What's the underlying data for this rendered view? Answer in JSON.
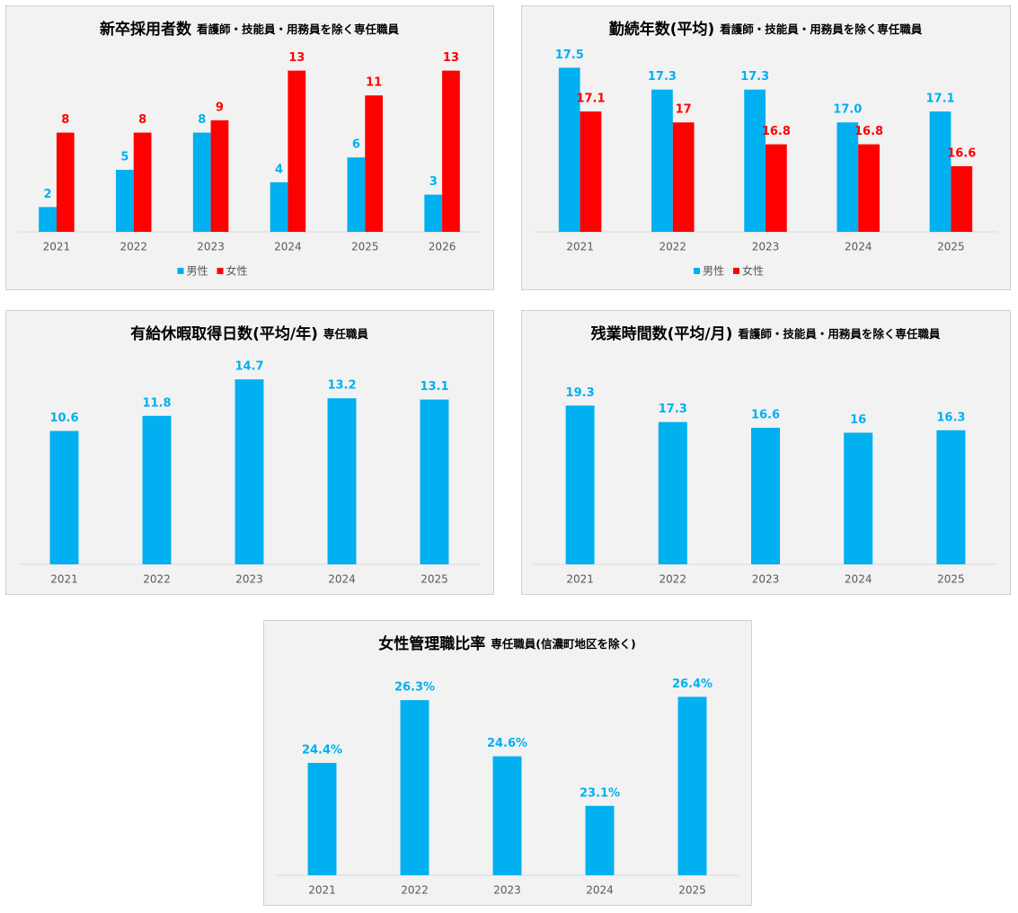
{
  "chart_data": [
    {
      "type": "bar",
      "title": "新卒採用者数",
      "subtitle": "看護師・技能員・用務員を除く専任職員",
      "categories": [
        "2021",
        "2022",
        "2023",
        "2024",
        "2025",
        "2026"
      ],
      "series": [
        {
          "name": "男性",
          "color": "#00b0f0",
          "values": [
            2,
            5,
            8,
            4,
            6,
            3
          ]
        },
        {
          "name": "女性",
          "color": "#ff0000",
          "values": [
            8,
            8,
            9,
            13,
            11,
            13
          ]
        }
      ],
      "ylim": [
        0,
        15
      ],
      "legend": "bottom"
    },
    {
      "type": "bar",
      "title": "勤続年数(平均)",
      "subtitle": "看護師・技能員・用務員を除く専任職員",
      "categories": [
        "2021",
        "2022",
        "2023",
        "2024",
        "2025"
      ],
      "series": [
        {
          "name": "男性",
          "color": "#00b0f0",
          "values": [
            17.5,
            17.3,
            17.3,
            17.0,
            17.1
          ],
          "value_labels": [
            "17.5",
            "17.3",
            "17.3",
            "17.0",
            "17.1"
          ]
        },
        {
          "name": "女性",
          "color": "#ff0000",
          "values": [
            17.1,
            17,
            16.8,
            16.8,
            16.6
          ]
        }
      ],
      "ylim": [
        16,
        17.7
      ],
      "legend": "bottom"
    },
    {
      "type": "bar",
      "title": "有給休暇取得日数(平均/年)",
      "subtitle": "専任職員",
      "categories": [
        "2021",
        "2022",
        "2023",
        "2024",
        "2025"
      ],
      "series": [
        {
          "name": "有給休暇取得日数",
          "color": "#00b0f0",
          "values": [
            10.6,
            11.8,
            14.7,
            13.2,
            13.1
          ]
        }
      ],
      "ylim": [
        0,
        17
      ]
    },
    {
      "type": "bar",
      "title": "残業時間数(平均/月)",
      "subtitle": "看護師・技能員・用務員を除く専任職員",
      "categories": [
        "2021",
        "2022",
        "2023",
        "2024",
        "2025"
      ],
      "series": [
        {
          "name": "残業時間数",
          "color": "#00b0f0",
          "values": [
            19.3,
            17.3,
            16.6,
            16,
            16.3
          ]
        }
      ],
      "ylim": [
        0,
        26
      ]
    },
    {
      "type": "bar",
      "title": "女性管理職比率",
      "subtitle": "専任職員(信濃町地区を除く)",
      "categories": [
        "2021",
        "2022",
        "2023",
        "2024",
        "2025"
      ],
      "series": [
        {
          "name": "女性管理職比率",
          "color": "#00b0f0",
          "values": [
            24.4,
            26.3,
            24.6,
            23.1,
            26.4
          ],
          "value_labels": [
            "24.4%",
            "26.3%",
            "24.6%",
            "23.1%",
            "26.4%"
          ]
        }
      ],
      "ylim": [
        21,
        27.5
      ]
    }
  ]
}
